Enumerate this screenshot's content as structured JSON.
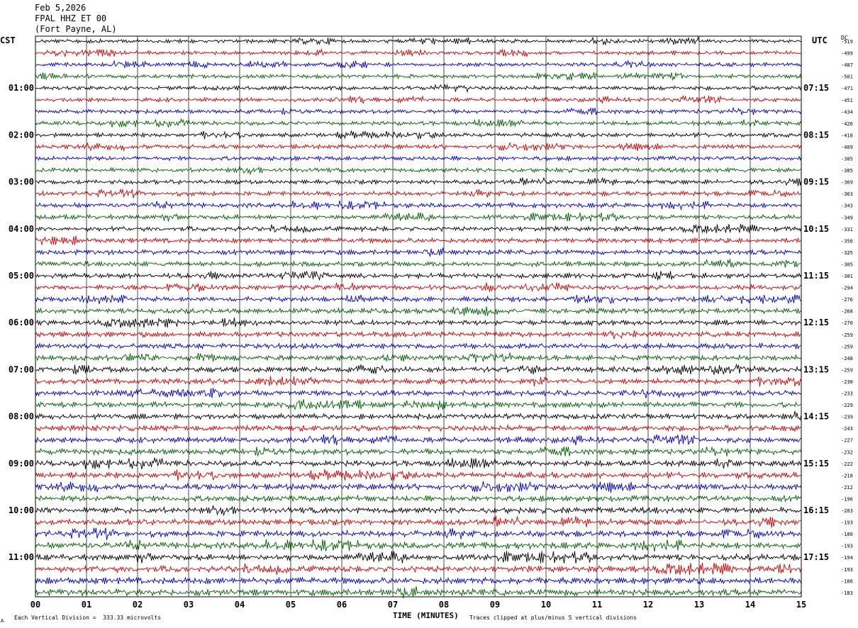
{
  "header": {
    "date": "Feb 5,2026",
    "station": "FPAL HHZ ET 00",
    "location": "(Fort Payne, AL)"
  },
  "left_timezone": "CST",
  "right_timezone": "UTC",
  "dc_label": "DC",
  "footer": {
    "division": "Each Vertical Division =  333.33 microvolts",
    "axis_title": "TIME (MINUTES)",
    "clip_note": "Traces clipped at plus/minus 5 vertical divisions",
    "corner_mark": "A"
  },
  "colors": {
    "trace_cycle": [
      "#000000",
      "#d40000",
      "#0000cc",
      "#006000"
    ],
    "grid": "#000000"
  },
  "chart_data": {
    "type": "line",
    "xlabel": "TIME (MINUTES)",
    "x_ticks": [
      "00",
      "01",
      "02",
      "03",
      "04",
      "05",
      "06",
      "07",
      "08",
      "09",
      "10",
      "11",
      "12",
      "13",
      "14",
      "15"
    ],
    "xlim": [
      0,
      15
    ],
    "traces_per_hour": 4,
    "left_hour_labels": [
      "01:00",
      "02:00",
      "03:00",
      "04:00",
      "05:00",
      "06:00",
      "07:00",
      "08:00",
      "09:00",
      "10:00",
      "11:00"
    ],
    "right_hour_labels": [
      "07:15",
      "08:15",
      "09:15",
      "10:15",
      "11:15",
      "12:15",
      "13:15",
      "14:15",
      "15:15",
      "16:15",
      "17:15"
    ],
    "label_trace_indices": [
      4,
      8,
      12,
      16,
      20,
      24,
      28,
      32,
      36,
      40,
      44
    ],
    "dc_offsets": [
      "-519",
      "-499",
      "-487",
      "-501",
      "-471",
      "-451",
      "-434",
      "-426",
      "-418",
      "-409",
      "-385",
      "-385",
      "-369",
      "-363",
      "-343",
      "-349",
      "-331",
      "-356",
      "-325",
      "-305",
      "-301",
      "-294",
      "-276",
      "-268",
      "-270",
      "-259",
      "-259",
      "-248",
      "-259",
      "-238",
      "-233",
      "-229",
      "-239",
      "-243",
      "-227",
      "-232",
      "-222",
      "-218",
      "-212",
      "-196",
      "-203",
      "-193",
      "-180",
      "-193",
      "-194",
      "-193",
      "-186",
      "-183"
    ]
  }
}
